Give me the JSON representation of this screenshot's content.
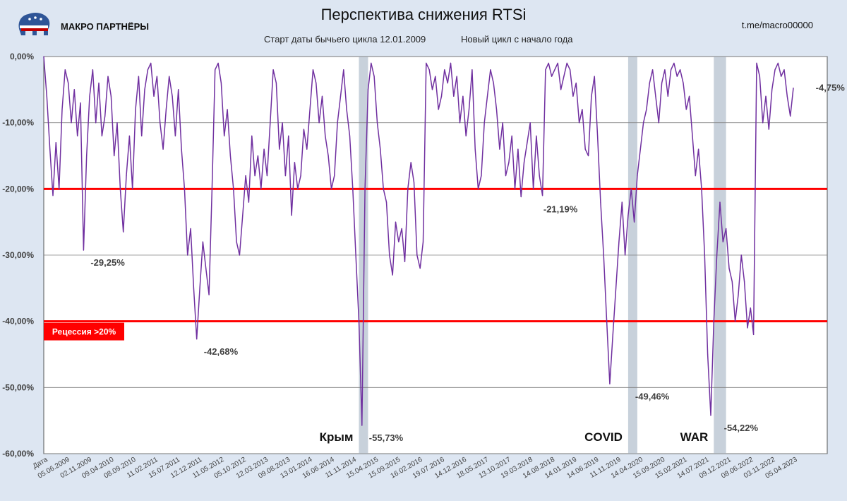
{
  "header": {
    "brand": "МАКРО ПАРТНЁРЫ",
    "title": "Перспектива снижения RTSi",
    "subtitle_left": "Старт даты  бычьего цикла 12.01.2009",
    "subtitle_right": "Новый цикл с начало года",
    "handle": "t.me/macro00000"
  },
  "colors": {
    "background": "#dde6f2",
    "plot": "#ffffff",
    "line": "#7030a0",
    "threshold": "#ff0000",
    "shade": "#c8d1db",
    "badge": "#ff0000"
  },
  "badge": {
    "label": "Рецессия >20%"
  },
  "chart_data": {
    "type": "line",
    "title": "Перспектива снижения RTSi",
    "ylim": [
      -60,
      0
    ],
    "yticks": [
      0,
      -10,
      -20,
      -30,
      -40,
      -50,
      -60
    ],
    "ytick_labels": [
      "0,00%",
      "-10,00%",
      "-20,00%",
      "-30,00%",
      "-40,00%",
      "-50,00%",
      "-60,00%"
    ],
    "xtick_labels": [
      "Дата",
      "05.06.2009",
      "02.11.2009",
      "09.04.2010",
      "08.09.2010",
      "11.02.2011",
      "15.07.2011",
      "12.12.2011",
      "11.05.2012",
      "05.10.2012",
      "12.03.2013",
      "09.08.2013",
      "13.01.2014",
      "16.06.2014",
      "11.11.2014",
      "15.04.2015",
      "15.09.2015",
      "16.02.2016",
      "19.07.2016",
      "14.12.2016",
      "18.05.2017",
      "13.10.2017",
      "19.03.2018",
      "14.08.2018",
      "14.01.2019",
      "14.06.2019",
      "11.11.2019",
      "14.04.2020",
      "15.09.2020",
      "15.02.2021",
      "14.07.2021",
      "09.12.2021",
      "08.06.2022",
      "03.11.2022",
      "05.04.2023"
    ],
    "thresholds": [
      -20,
      -40
    ],
    "series": [
      {
        "values": [
          0,
          -6,
          -14,
          -21,
          -13,
          -20,
          -8,
          -2,
          -4,
          -10,
          -5,
          -12,
          -7,
          -29.25,
          -15,
          -6,
          -2,
          -10,
          -4,
          -12,
          -9,
          -3,
          -6,
          -15,
          -10,
          -20,
          -26.5,
          -18,
          -12,
          -20,
          -8,
          -3,
          -12,
          -5,
          -2,
          -1,
          -6,
          -3,
          -10,
          -14,
          -8,
          -3,
          -6,
          -12,
          -5,
          -14,
          -20,
          -30,
          -26,
          -35,
          -42.68,
          -35,
          -28,
          -32,
          -36,
          -20,
          -2,
          -1,
          -4,
          -12,
          -8,
          -15,
          -20,
          -28,
          -30,
          -24,
          -18,
          -22,
          -12,
          -18,
          -15,
          -20,
          -14,
          -18,
          -10,
          -2,
          -4,
          -14,
          -10,
          -18,
          -12,
          -24,
          -16,
          -20,
          -18,
          -11,
          -14,
          -8,
          -2,
          -4,
          -10,
          -6,
          -12,
          -15,
          -20,
          -18,
          -10,
          -6,
          -2,
          -8,
          -12,
          -20,
          -30,
          -40,
          -55.73,
          -20,
          -5,
          -1,
          -3,
          -10,
          -14,
          -20,
          -22,
          -30,
          -33,
          -25,
          -28,
          -26,
          -31,
          -20,
          -16,
          -19,
          -30,
          -32,
          -28,
          -1,
          -2,
          -5,
          -3,
          -8,
          -6,
          -2,
          -4,
          -1,
          -6,
          -3,
          -10,
          -6,
          -12,
          -8,
          -2,
          -14,
          -20,
          -18,
          -10,
          -6,
          -2,
          -4,
          -8,
          -14,
          -10,
          -18,
          -16,
          -12,
          -20,
          -14,
          -21.19,
          -16,
          -13,
          -10,
          -20,
          -12,
          -18,
          -21,
          -2,
          -1,
          -3,
          -2,
          -1,
          -5,
          -3,
          -1,
          -2,
          -6,
          -4,
          -10,
          -8,
          -14,
          -15,
          -6,
          -3,
          -12,
          -22,
          -30,
          -40,
          -49.46,
          -42,
          -35,
          -28,
          -22,
          -30,
          -24,
          -20,
          -25,
          -18,
          -14,
          -10,
          -8,
          -4,
          -2,
          -6,
          -10,
          -4,
          -2,
          -6,
          -2,
          -1,
          -3,
          -2,
          -4,
          -8,
          -6,
          -12,
          -18,
          -14,
          -20,
          -30,
          -45,
          -54.22,
          -40,
          -30,
          -22,
          -28,
          -26,
          -32,
          -34,
          -40,
          -36,
          -30,
          -34,
          -41,
          -38,
          -42,
          -1,
          -3,
          -10,
          -6,
          -11,
          -5,
          -2,
          -1,
          -3,
          -2,
          -6,
          -9,
          -4.75
        ]
      }
    ],
    "shaded_regions": [
      [
        103,
        106
      ],
      [
        191,
        194
      ],
      [
        219,
        223
      ]
    ],
    "annotations": [
      {
        "index": 13,
        "value": -29.25,
        "label": "-29,25%"
      },
      {
        "index": 50,
        "value": -42.68,
        "label": "-42,68%"
      },
      {
        "index": 104,
        "value": -55.73,
        "label": "-55,73%"
      },
      {
        "index": 161,
        "value": -21.19,
        "label": "-21,19%"
      },
      {
        "index": 191,
        "value": -49.46,
        "label": "-49,46%"
      },
      {
        "index": 220,
        "value": -54.22,
        "label": "-54,22%"
      },
      {
        "index": 250,
        "value": -4.75,
        "label": "-4,75%"
      }
    ],
    "event_labels": [
      {
        "region": 0,
        "text": "Крым"
      },
      {
        "region": 1,
        "text": "COVID"
      },
      {
        "region": 2,
        "text": "WAR"
      }
    ]
  }
}
